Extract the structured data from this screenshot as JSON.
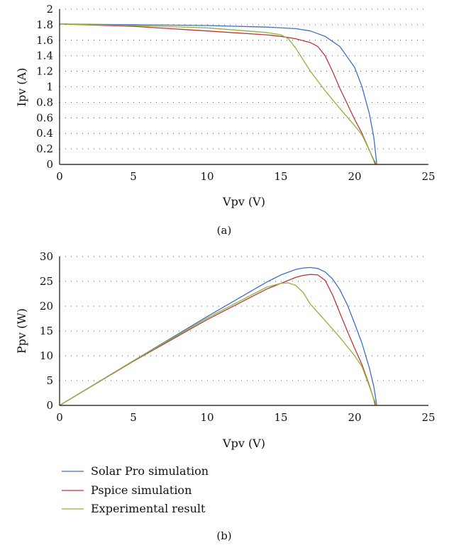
{
  "legend": [
    {
      "name": "Solar Pro simulation",
      "color": "#3b6fc4"
    },
    {
      "name": "Pspice simulation",
      "color": "#c0343c"
    },
    {
      "name": "Experimental result",
      "color": "#8db33a"
    }
  ],
  "chart_data": [
    {
      "type": "line",
      "caption": "(a)",
      "xlabel": "Vpv (V)",
      "ylabel": "Ipv (A)",
      "xlim": [
        0,
        25
      ],
      "ylim": [
        0,
        2
      ],
      "xticks": [
        "0",
        "5",
        "10",
        "15",
        "20",
        "25"
      ],
      "yticks": [
        "0",
        "0.2",
        "0.4",
        "0.6",
        "0.8",
        "1",
        "1.2",
        "1.4",
        "1.6",
        "1.8",
        "2"
      ],
      "grid": "dotted",
      "series": [
        {
          "name": "Solar Pro simulation",
          "color": "#3b6fc4",
          "x": [
            0,
            5,
            10,
            14,
            16,
            17,
            18,
            19,
            20,
            20.5,
            21,
            21.3,
            21.5
          ],
          "y": [
            1.81,
            1.8,
            1.79,
            1.77,
            1.75,
            1.72,
            1.65,
            1.52,
            1.25,
            1.0,
            0.65,
            0.35,
            0.0
          ]
        },
        {
          "name": "Pspice simulation",
          "color": "#c0343c",
          "x": [
            0,
            5,
            10,
            14,
            15,
            16,
            17,
            17.5,
            18,
            18.5,
            19,
            20,
            20.5,
            21,
            21.3,
            21.4
          ],
          "y": [
            1.81,
            1.78,
            1.72,
            1.67,
            1.65,
            1.62,
            1.57,
            1.52,
            1.4,
            1.2,
            0.98,
            0.58,
            0.4,
            0.18,
            0.05,
            0.0
          ]
        },
        {
          "name": "Experimental result",
          "color": "#8db33a",
          "x": [
            0,
            5,
            10,
            14,
            15,
            15.5,
            16,
            16.5,
            17,
            18,
            19,
            20,
            20.5,
            21,
            21.3,
            21.5
          ],
          "y": [
            1.81,
            1.79,
            1.76,
            1.7,
            1.67,
            1.62,
            1.5,
            1.35,
            1.2,
            0.95,
            0.72,
            0.5,
            0.38,
            0.18,
            0.06,
            0.0
          ]
        }
      ]
    },
    {
      "type": "line",
      "caption": "(b)",
      "xlabel": "Vpv (V)",
      "ylabel": "Ppv (W)",
      "xlim": [
        0,
        25
      ],
      "ylim": [
        0,
        30
      ],
      "xticks": [
        "0",
        "5",
        "10",
        "15",
        "20",
        "25"
      ],
      "yticks": [
        "0",
        "5",
        "10",
        "15",
        "20",
        "25",
        "30"
      ],
      "grid": "dotted",
      "series": [
        {
          "name": "Solar Pro simulation",
          "color": "#3b6fc4",
          "x": [
            0,
            5,
            10,
            14,
            15,
            16,
            16.5,
            17,
            17.5,
            18,
            18.5,
            19,
            19.5,
            20,
            20.5,
            21,
            21.3,
            21.5
          ],
          "y": [
            0,
            9.0,
            17.9,
            24.8,
            26.3,
            27.4,
            27.7,
            27.8,
            27.6,
            26.9,
            25.5,
            23.3,
            20.3,
            16.5,
            12.5,
            7.5,
            3.8,
            0
          ]
        },
        {
          "name": "Pspice simulation",
          "color": "#c0343c",
          "x": [
            0,
            5,
            10,
            14,
            15,
            16,
            16.5,
            17,
            17.5,
            18,
            18.5,
            19,
            19.5,
            20,
            20.5,
            21,
            21.3,
            21.4
          ],
          "y": [
            0,
            8.9,
            17.3,
            23.4,
            24.6,
            25.8,
            26.2,
            26.4,
            26.3,
            25.2,
            22.3,
            18.6,
            15.0,
            11.5,
            8.2,
            4.0,
            1.2,
            0
          ]
        },
        {
          "name": "Experimental result",
          "color": "#8db33a",
          "x": [
            0,
            5,
            10,
            14,
            15,
            15.5,
            16,
            16.5,
            17,
            18,
            19,
            20,
            20.5,
            21,
            21.3,
            21.5
          ],
          "y": [
            0,
            9.0,
            17.6,
            23.8,
            24.6,
            24.7,
            24.2,
            22.8,
            20.4,
            17.1,
            13.7,
            10.0,
            7.8,
            3.8,
            1.3,
            0
          ]
        }
      ]
    }
  ]
}
